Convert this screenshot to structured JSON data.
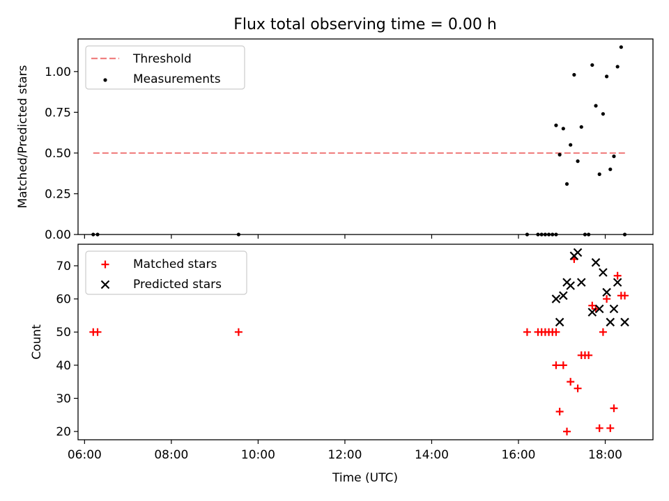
{
  "figure": {
    "title": "Flux total observing time = 0.00 h",
    "xlabel": "Time (UTC)",
    "xticks": [
      "06:00",
      "08:00",
      "10:00",
      "12:00",
      "14:00",
      "16:00",
      "18:00"
    ]
  },
  "chart_data": [
    {
      "type": "scatter",
      "panel": "top",
      "ylabel": "Matched/Predicted stars",
      "xlim": [
        "05:51",
        "19:06"
      ],
      "ylim": [
        0,
        1.2
      ],
      "yticks": [
        "0.00",
        "0.25",
        "0.50",
        "0.75",
        "1.00"
      ],
      "legend": {
        "position": "top-left"
      },
      "series": [
        {
          "name": "Threshold",
          "style": "dashed-line",
          "color": "#f08080",
          "x": [
            "06:12",
            "18:30"
          ],
          "y": [
            0.5,
            0.5
          ]
        },
        {
          "name": "Measurements",
          "style": "dot",
          "color": "#000000",
          "x": [
            "06:12",
            "06:18",
            "09:33",
            "16:12",
            "16:27",
            "16:32",
            "16:37",
            "16:42",
            "16:47",
            "16:52",
            "16:52",
            "16:57",
            "17:02",
            "17:07",
            "17:12",
            "17:17",
            "17:22",
            "17:27",
            "17:32",
            "17:37",
            "17:42",
            "17:47",
            "17:52",
            "17:57",
            "18:02",
            "18:07",
            "18:12",
            "18:17",
            "18:22",
            "18:27"
          ],
          "y": [
            0,
            0,
            0,
            0,
            0,
            0,
            0,
            0,
            0,
            0,
            0.67,
            0.49,
            0.65,
            0.31,
            0.55,
            0.98,
            0.45,
            0.66,
            0,
            0,
            1.04,
            0.79,
            0.37,
            0.74,
            0.97,
            0.4,
            0.48,
            1.03,
            1.15,
            0
          ]
        }
      ]
    },
    {
      "type": "scatter",
      "panel": "bottom",
      "ylabel": "Count",
      "xlim": [
        "05:51",
        "19:06"
      ],
      "ylim": [
        17.5,
        76.5
      ],
      "yticks": [
        "20",
        "30",
        "40",
        "50",
        "60",
        "70"
      ],
      "legend": {
        "position": "top-left"
      },
      "series": [
        {
          "name": "Matched stars",
          "marker": "plus",
          "color": "#ff0000",
          "x": [
            "06:12",
            "06:18",
            "09:33",
            "16:12",
            "16:27",
            "16:32",
            "16:37",
            "16:42",
            "16:47",
            "16:52",
            "16:52",
            "16:57",
            "17:02",
            "17:07",
            "17:12",
            "17:17",
            "17:22",
            "17:27",
            "17:32",
            "17:37",
            "17:42",
            "17:47",
            "17:52",
            "17:57",
            "18:02",
            "18:07",
            "18:12",
            "18:17",
            "18:22",
            "18:27"
          ],
          "y": [
            50,
            50,
            50,
            50,
            50,
            50,
            50,
            50,
            50,
            50,
            40,
            26,
            40,
            20,
            35,
            72,
            33,
            43,
            43,
            43,
            58,
            57,
            21,
            50,
            60,
            21,
            27,
            67,
            61,
            61
          ]
        },
        {
          "name": "Predicted stars",
          "marker": "x",
          "color": "#000000",
          "x": [
            "16:52",
            "16:57",
            "17:02",
            "17:07",
            "17:12",
            "17:17",
            "17:22",
            "17:27",
            "17:42",
            "17:47",
            "17:52",
            "17:57",
            "18:02",
            "18:07",
            "18:12",
            "18:17",
            "18:27"
          ],
          "y": [
            60,
            53,
            61,
            65,
            64,
            73,
            74,
            65,
            56,
            71,
            57,
            68,
            62,
            53,
            57,
            65,
            53
          ]
        }
      ]
    }
  ]
}
